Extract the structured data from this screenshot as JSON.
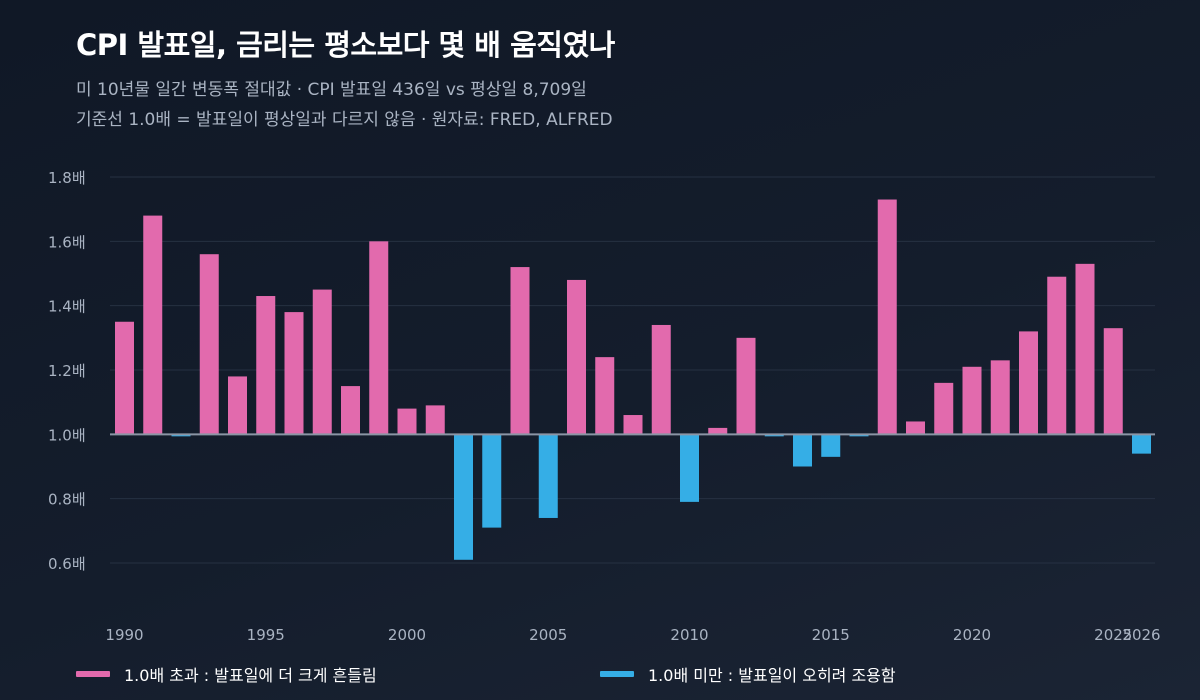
{
  "header": {
    "title": "CPI 발표일, 금리는 평소보다 몇 배 움직였나",
    "subtitle_line1": "미 10년물 일간 변동폭 절대값 · CPI 발표일 436일 vs 평상일 8,709일",
    "subtitle_line2": "기준선 1.0배 = 발표일이 평상일과 다르지 않음 · 원자료: FRED, ALFRED"
  },
  "legend": {
    "above_label": "1.0배 초과 : 발표일에 더 크게 흔들림",
    "below_label": "1.0배 미만 : 발표일이 오히려 조용함"
  },
  "colors": {
    "above": "#e26aad",
    "below": "#35aee6",
    "baseline": "#8b95a5",
    "grid": "#263142"
  },
  "chart_data": {
    "type": "bar",
    "title": "CPI 발표일, 금리는 평소보다 몇 배 움직였나",
    "xlabel": "",
    "ylabel": "",
    "baseline": 1.0,
    "ylim": [
      0.6,
      1.8
    ],
    "y_ticks": [
      0.6,
      0.8,
      1.0,
      1.2,
      1.4,
      1.6,
      1.8
    ],
    "y_tick_suffix": "배",
    "x_tick_labels": [
      "1990",
      "1995",
      "2000",
      "2005",
      "2010",
      "2015",
      "2020",
      "2025",
      "2026"
    ],
    "grid": true,
    "legend_position": "bottom",
    "categories": [
      1990,
      1991,
      1992,
      1993,
      1994,
      1995,
      1996,
      1997,
      1998,
      1999,
      2000,
      2001,
      2002,
      2003,
      2004,
      2005,
      2006,
      2007,
      2008,
      2009,
      2010,
      2011,
      2012,
      2013,
      2014,
      2015,
      2016,
      2017,
      2018,
      2019,
      2020,
      2021,
      2022,
      2023,
      2024,
      2025,
      2026
    ],
    "values": [
      1.35,
      1.68,
      0.995,
      1.56,
      1.18,
      1.43,
      1.38,
      1.45,
      1.15,
      1.6,
      1.08,
      1.09,
      0.61,
      0.71,
      1.52,
      0.74,
      1.48,
      1.24,
      1.06,
      1.34,
      0.79,
      1.02,
      1.3,
      0.995,
      0.9,
      0.93,
      0.995,
      1.73,
      1.04,
      1.16,
      1.21,
      1.23,
      1.32,
      1.49,
      1.53,
      1.33,
      0.94
    ]
  }
}
